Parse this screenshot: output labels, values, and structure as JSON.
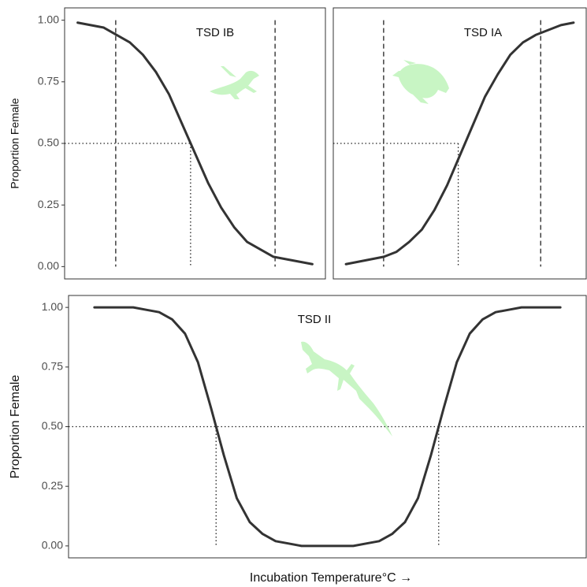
{
  "chart_data": [
    {
      "type": "line",
      "title": "TSD IB",
      "ylabel": "Proportion Female",
      "color": "#333333",
      "x": [
        0.5,
        1,
        1.5,
        2,
        2.5,
        3,
        3.5,
        4,
        4.5,
        5,
        5.5,
        6,
        6.5,
        7,
        7.5,
        8,
        8.5,
        9,
        9.5
      ],
      "values": [
        0.99,
        0.98,
        0.97,
        0.94,
        0.91,
        0.86,
        0.79,
        0.7,
        0.58,
        0.46,
        0.34,
        0.24,
        0.16,
        0.1,
        0.07,
        0.04,
        0.03,
        0.02,
        0.01
      ],
      "xlim": [
        0,
        10
      ],
      "ylim": [
        -0.05,
        1.05
      ],
      "yticks": [
        {
          "value": 0,
          "label": "0.00"
        },
        {
          "value": 0.25,
          "label": "0.25"
        },
        {
          "value": 0.5,
          "label": "0.50"
        },
        {
          "value": 0.75,
          "label": "0.75"
        },
        {
          "value": 1,
          "label": "1.00"
        }
      ],
      "dashed_x": [
        1.96,
        8.07
      ],
      "threshold": {
        "y": 0.5,
        "x": [
          4.83
        ]
      }
    },
    {
      "type": "line",
      "title": "TSD IA",
      "color": "#333333",
      "x": [
        0.5,
        1,
        1.5,
        2,
        2.5,
        3,
        3.5,
        4,
        4.5,
        5,
        5.5,
        6,
        6.5,
        7,
        7.5,
        8,
        8.5,
        9,
        9.5
      ],
      "values": [
        0.01,
        0.02,
        0.03,
        0.04,
        0.06,
        0.1,
        0.15,
        0.23,
        0.33,
        0.45,
        0.57,
        0.69,
        0.78,
        0.86,
        0.91,
        0.94,
        0.96,
        0.98,
        0.99
      ],
      "xlim": [
        0,
        10
      ],
      "ylim": [
        -0.05,
        1.05
      ],
      "dashed_x": [
        1.99,
        8.2
      ],
      "threshold": {
        "y": 0.5,
        "x": [
          4.94
        ]
      }
    },
    {
      "type": "line",
      "title": "TSD II",
      "ylabel": "Proportion Female",
      "xlabel": "Incubation Temperature°C  →",
      "color": "#333333",
      "x": [
        1,
        1.5,
        2,
        2.5,
        3,
        3.5,
        4,
        4.5,
        5,
        5.5,
        6,
        6.5,
        7,
        7.5,
        8,
        8.5,
        9,
        9.5,
        10,
        10.5,
        11,
        11.5,
        12,
        12.5,
        13,
        13.5,
        14,
        14.5,
        15,
        15.5,
        16,
        16.5,
        17,
        17.5,
        18,
        18.5,
        19
      ],
      "values": [
        1.0,
        1.0,
        1.0,
        1.0,
        0.99,
        0.98,
        0.95,
        0.89,
        0.77,
        0.58,
        0.38,
        0.2,
        0.1,
        0.05,
        0.02,
        0.01,
        0.0,
        0.0,
        0.0,
        0.0,
        0.0,
        0.01,
        0.02,
        0.05,
        0.1,
        0.2,
        0.38,
        0.58,
        0.77,
        0.89,
        0.95,
        0.98,
        0.99,
        1.0,
        1.0,
        1.0,
        1.0
      ],
      "xlim": [
        0,
        20
      ],
      "ylim": [
        -0.05,
        1.05
      ],
      "yticks": [
        {
          "value": 0,
          "label": "0.00"
        },
        {
          "value": 0.25,
          "label": "0.25"
        },
        {
          "value": 0.5,
          "label": "0.50"
        },
        {
          "value": 0.75,
          "label": "0.75"
        },
        {
          "value": 1,
          "label": "1.00"
        }
      ],
      "threshold": {
        "y": 0.5,
        "x": [
          5.7,
          14.3
        ]
      },
      "threshold_full": true
    }
  ]
}
